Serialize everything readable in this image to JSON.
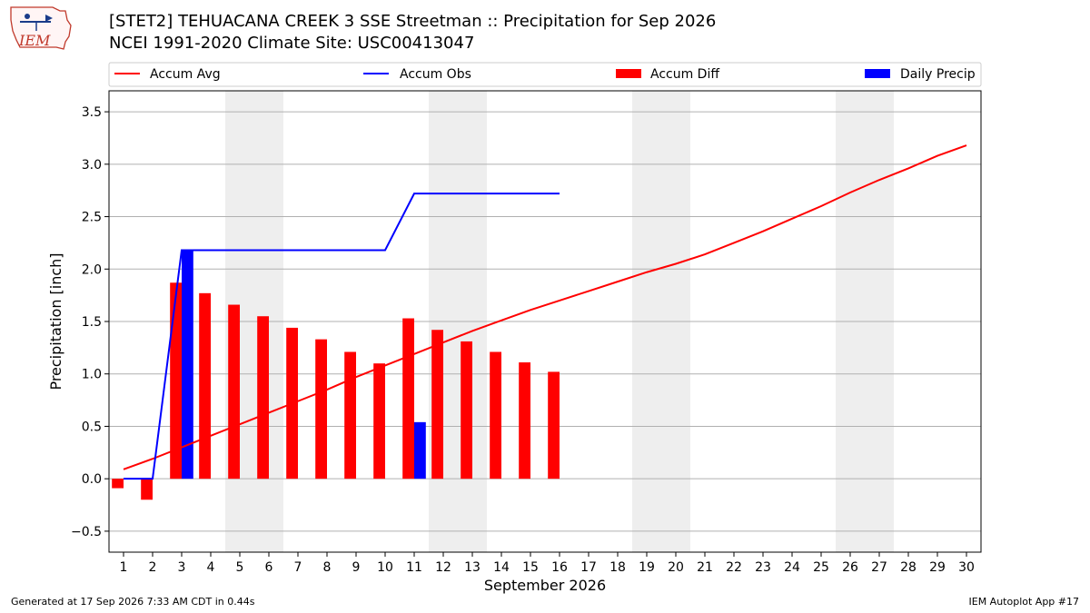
{
  "header": {
    "logo_text": "IEM",
    "title": "[STET2] TEHUACANA CREEK 3 SSE Streetman :: Precipitation for Sep 2026",
    "subtitle": "NCEI 1991-2020 Climate Site: USC00413047"
  },
  "footer": {
    "generated": "Generated at 17 Sep 2026 7:33 AM CDT in 0.44s",
    "app": "IEM Autoplot App #17"
  },
  "colors": {
    "accum_avg": "#ff0000",
    "accum_obs": "#0000ff",
    "accum_diff": "#ff0000",
    "daily_precip": "#0000ff",
    "weekend_band": "#eeeeee",
    "grid": "#b0b0b0"
  },
  "chart_data": {
    "type": "bar",
    "xlabel": "September 2026",
    "ylabel": "Precipitation [inch]",
    "xlim": [
      0.5,
      30.5
    ],
    "ylim": [
      -0.7,
      3.7
    ],
    "yticks": [
      -0.5,
      0.0,
      0.5,
      1.0,
      1.5,
      2.0,
      2.5,
      3.0,
      3.5
    ],
    "ytick_labels": [
      "−0.5",
      "0.0",
      "0.5",
      "1.0",
      "1.5",
      "2.0",
      "2.5",
      "3.0",
      "3.5"
    ],
    "grid": "horizontal",
    "legend_position": "top",
    "weekend_bands": [
      [
        4.5,
        6.5
      ],
      [
        11.5,
        13.5
      ],
      [
        18.5,
        20.5
      ],
      [
        25.5,
        27.5
      ]
    ],
    "days": [
      1,
      2,
      3,
      4,
      5,
      6,
      7,
      8,
      9,
      10,
      11,
      12,
      13,
      14,
      15,
      16,
      17,
      18,
      19,
      20,
      21,
      22,
      23,
      24,
      25,
      26,
      27,
      28,
      29,
      30
    ],
    "series": [
      {
        "name": "Accum Avg",
        "type": "line",
        "color": "#ff0000",
        "x": [
          1,
          2,
          3,
          4,
          5,
          6,
          7,
          8,
          9,
          10,
          11,
          12,
          13,
          14,
          15,
          16,
          17,
          18,
          19,
          20,
          21,
          22,
          23,
          24,
          25,
          26,
          27,
          28,
          29,
          30
        ],
        "values": [
          0.09,
          0.19,
          0.3,
          0.41,
          0.52,
          0.63,
          0.74,
          0.85,
          0.97,
          1.08,
          1.19,
          1.3,
          1.41,
          1.51,
          1.61,
          1.7,
          1.79,
          1.88,
          1.97,
          2.05,
          2.14,
          2.25,
          2.36,
          2.48,
          2.6,
          2.73,
          2.85,
          2.96,
          3.08,
          3.18
        ]
      },
      {
        "name": "Accum Obs",
        "type": "line",
        "color": "#0000ff",
        "x": [
          1,
          2,
          3,
          4,
          5,
          6,
          7,
          8,
          9,
          10,
          11,
          12,
          13,
          14,
          15,
          16
        ],
        "values": [
          0.0,
          0.0,
          2.18,
          2.18,
          2.18,
          2.18,
          2.18,
          2.18,
          2.18,
          2.18,
          2.72,
          2.72,
          2.72,
          2.72,
          2.72,
          2.72
        ]
      },
      {
        "name": "Accum Diff",
        "type": "bar",
        "color": "#ff0000",
        "x": [
          1,
          2,
          3,
          4,
          5,
          6,
          7,
          8,
          9,
          10,
          11,
          12,
          13,
          14,
          15,
          16
        ],
        "values": [
          -0.09,
          -0.2,
          1.87,
          1.77,
          1.66,
          1.55,
          1.44,
          1.33,
          1.21,
          1.1,
          1.53,
          1.42,
          1.31,
          1.21,
          1.11,
          1.02
        ]
      },
      {
        "name": "Daily Precip",
        "type": "bar",
        "color": "#0000ff",
        "x": [
          3,
          11
        ],
        "values": [
          2.18,
          0.54
        ]
      }
    ]
  }
}
